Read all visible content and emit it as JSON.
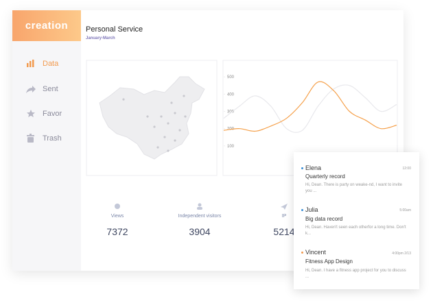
{
  "sidebar": {
    "logo": "creation",
    "menu": [
      "Data",
      "Sent",
      "Favor",
      "Trash"
    ]
  },
  "header": {
    "title": "Personal Service",
    "subtitle": "January-March"
  },
  "chart_data": {
    "type": "line",
    "ylim": [
      0,
      600
    ],
    "yticks": [
      100,
      200,
      300,
      400,
      500
    ],
    "series": [
      {
        "color": "#e8e8ec",
        "values": [
          260,
          330,
          390,
          330,
          200,
          190,
          330,
          430,
          450,
          380,
          300,
          340
        ]
      },
      {
        "color": "#f5a04a",
        "values": [
          190,
          200,
          185,
          215,
          260,
          350,
          470,
          420,
          300,
          250,
          200,
          220
        ]
      }
    ]
  },
  "stats": [
    {
      "label": "Views",
      "value": 7372
    },
    {
      "label": "Independent visitors",
      "value": 3904
    },
    {
      "label": "IP",
      "value": 5214
    }
  ],
  "messages": [
    {
      "name": "Elena",
      "time": "12:00",
      "subject": "Quarterly record",
      "body": "Hi, Dean. There is party on weake-nd, I want to invite you ..."
    },
    {
      "name": "Julia",
      "time": "5:00am",
      "subject": "Big data record",
      "body": "Hi, Dean. Haven't seen each otherfor a long time. Don't k..."
    },
    {
      "name": "Vincent",
      "time": "4:00pm 2/13",
      "subject": "Fitness App Design",
      "body": "Hi, Dean. I have a fitness app project for you to discuss ..."
    }
  ]
}
